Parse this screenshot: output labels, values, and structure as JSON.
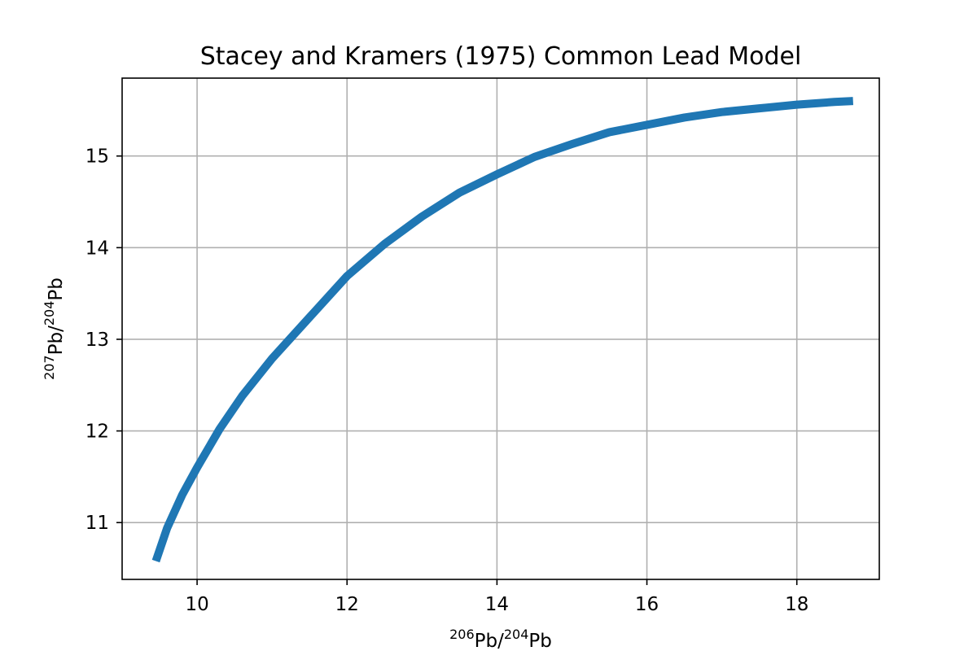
{
  "chart_data": {
    "type": "line",
    "title": "Stacey and Kramers (1975) Common Lead Model",
    "xlabel": {
      "base": "Pb/",
      "sup1": "206",
      "sup2": "204",
      "tail": "Pb"
    },
    "ylabel": {
      "base": "Pb/",
      "sup1": "207",
      "sup2": "204",
      "tail": "Pb"
    },
    "xlim": [
      9.0,
      19.1
    ],
    "ylim": [
      10.38,
      15.85
    ],
    "xticks": [
      10,
      12,
      14,
      16,
      18
    ],
    "yticks": [
      11,
      12,
      13,
      14,
      15
    ],
    "grid": true,
    "legend": "none",
    "series": [
      {
        "color": "#1f77b4",
        "x": [
          9.45,
          9.6,
          9.8,
          10.0,
          10.3,
          10.6,
          11.0,
          11.5,
          12.0,
          12.5,
          13.0,
          13.5,
          14.0,
          14.5,
          15.0,
          15.5,
          16.0,
          16.5,
          17.0,
          17.5,
          18.0,
          18.5,
          18.75
        ],
        "y": [
          10.58,
          10.94,
          11.3,
          11.6,
          12.02,
          12.38,
          12.79,
          13.24,
          13.69,
          14.04,
          14.34,
          14.6,
          14.8,
          14.99,
          15.13,
          15.26,
          15.34,
          15.42,
          15.48,
          15.52,
          15.56,
          15.59,
          15.6
        ]
      }
    ]
  }
}
